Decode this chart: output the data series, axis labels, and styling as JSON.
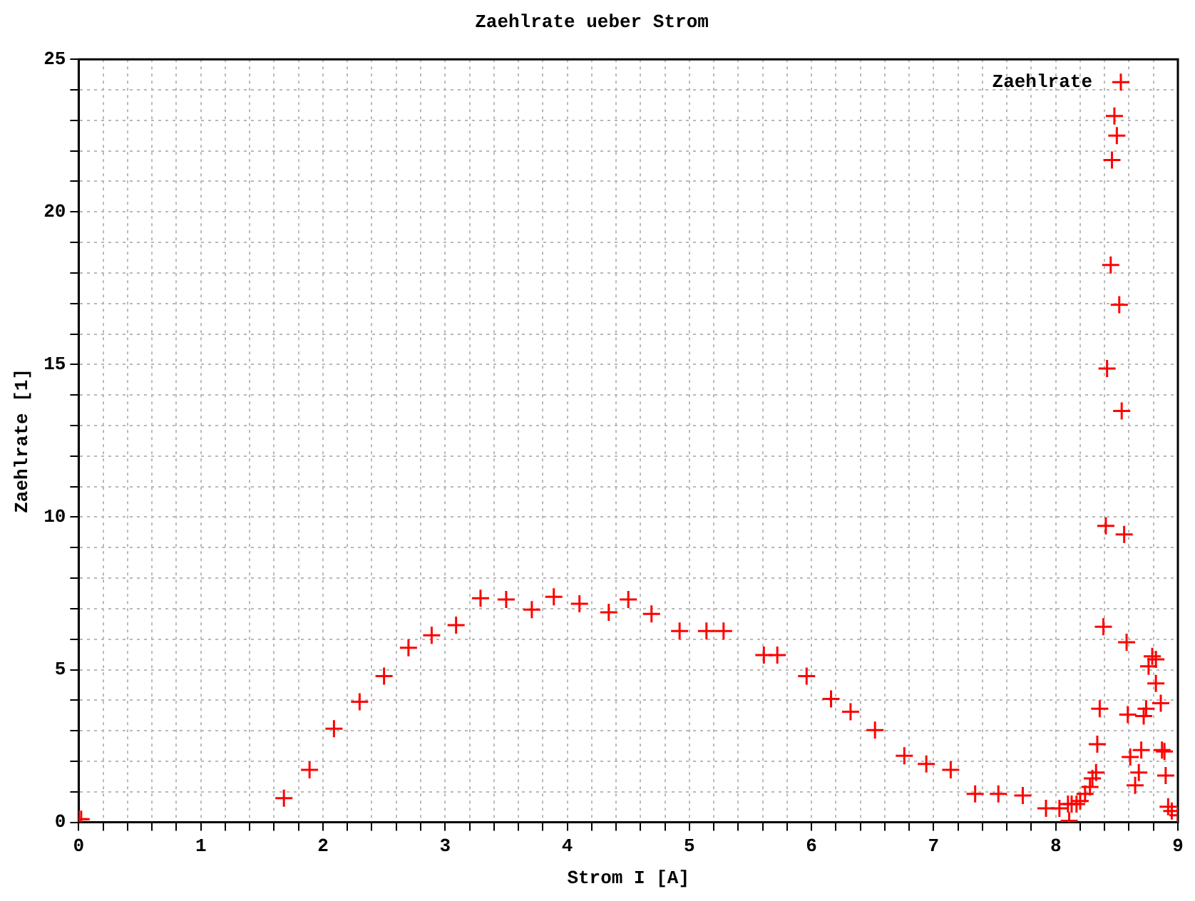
{
  "chart_data": {
    "type": "scatter",
    "title": "Zaehlrate ueber Strom",
    "xlabel": "Strom I [A]",
    "ylabel": "Zaehlrate [1]",
    "xlim": [
      0,
      9
    ],
    "ylim": [
      0,
      25
    ],
    "xticks": [
      0,
      {
        "value": 0.2,
        "label": null
      },
      {
        "value": 0.4,
        "label": null
      },
      {
        "value": 0.6,
        "label": null
      },
      {
        "value": 0.8,
        "label": null
      },
      1,
      {
        "value": 1.2,
        "label": null
      },
      {
        "value": 1.4,
        "label": null
      },
      {
        "value": 1.6,
        "label": null
      },
      {
        "value": 1.8,
        "label": null
      },
      2,
      {
        "value": 2.2,
        "label": null
      },
      {
        "value": 2.4,
        "label": null
      },
      {
        "value": 2.6,
        "label": null
      },
      {
        "value": 2.8,
        "label": null
      },
      3,
      {
        "value": 3.2,
        "label": null
      },
      {
        "value": 3.4,
        "label": null
      },
      {
        "value": 3.6,
        "label": null
      },
      {
        "value": 3.8,
        "label": null
      },
      4,
      {
        "value": 4.2,
        "label": null
      },
      {
        "value": 4.4,
        "label": null
      },
      {
        "value": 4.6,
        "label": null
      },
      {
        "value": 4.8,
        "label": null
      },
      5,
      {
        "value": 5.2,
        "label": null
      },
      {
        "value": 5.4,
        "label": null
      },
      {
        "value": 5.6,
        "label": null
      },
      {
        "value": 5.8,
        "label": null
      },
      6,
      {
        "value": 6.2,
        "label": null
      },
      {
        "value": 6.4,
        "label": null
      },
      {
        "value": 6.6,
        "label": null
      },
      {
        "value": 6.8,
        "label": null
      },
      7,
      {
        "value": 7.2,
        "label": null
      },
      {
        "value": 7.4,
        "label": null
      },
      {
        "value": 7.6,
        "label": null
      },
      {
        "value": 7.8,
        "label": null
      },
      8,
      {
        "value": 8.2,
        "label": null
      },
      {
        "value": 8.4,
        "label": null
      },
      {
        "value": 8.6,
        "label": null
      },
      {
        "value": 8.8,
        "label": null
      },
      9
    ],
    "yticks": [
      0,
      {
        "value": 1,
        "label": null
      },
      {
        "value": 2,
        "label": null
      },
      {
        "value": 3,
        "label": null
      },
      {
        "value": 4,
        "label": null
      },
      5,
      {
        "value": 6,
        "label": null
      },
      {
        "value": 7,
        "label": null
      },
      {
        "value": 8,
        "label": null
      },
      {
        "value": 9,
        "label": null
      },
      10,
      {
        "value": 11,
        "label": null
      },
      {
        "value": 12,
        "label": null
      },
      {
        "value": 13,
        "label": null
      },
      {
        "value": 14,
        "label": null
      },
      15,
      {
        "value": 16,
        "label": null
      },
      {
        "value": 17,
        "label": null
      },
      {
        "value": 18,
        "label": null
      },
      {
        "value": 19,
        "label": null
      },
      20,
      {
        "value": 21,
        "label": null
      },
      {
        "value": 22,
        "label": null
      },
      {
        "value": 23,
        "label": null
      },
      {
        "value": 24,
        "label": null
      },
      25
    ],
    "grid": true,
    "legend": "top right",
    "marker": "cross",
    "series": [
      {
        "name": "Zaehlrate",
        "color": "#ff0000",
        "x": [
          0,
          0.02,
          1.68,
          1.89,
          2.09,
          2.3,
          2.5,
          2.7,
          2.89,
          3.09,
          3.29,
          3.5,
          3.71,
          3.89,
          4.1,
          4.34,
          4.5,
          4.69,
          4.92,
          5.14,
          5.28,
          5.61,
          5.72,
          5.96,
          6.16,
          6.32,
          6.52,
          6.76,
          6.94,
          7.14,
          7.34,
          7.53,
          7.73,
          7.92,
          8.03,
          8.1,
          8.13,
          8.17,
          8.11,
          8.2,
          8.24,
          8.28,
          8.3,
          8.33,
          8.34,
          8.36,
          8.39,
          8.41,
          8.56,
          8.58,
          8.59,
          8.61,
          8.65,
          8.68,
          8.7,
          8.72,
          8.74,
          8.76,
          8.79,
          8.82,
          8.82,
          8.86,
          8.87,
          8.89,
          8.9,
          8.92,
          8.95,
          9,
          8.42,
          8.54,
          8.52,
          8.45,
          8.46,
          8.5,
          8.48
        ],
        "values": [
          0.1,
          0.1,
          0.79,
          1.72,
          3.07,
          3.95,
          4.79,
          5.72,
          6.13,
          6.46,
          7.34,
          7.3,
          6.97,
          7.39,
          7.16,
          6.88,
          7.3,
          6.83,
          6.27,
          6.27,
          6.27,
          5.48,
          5.48,
          4.79,
          4.04,
          3.62,
          3.02,
          2.18,
          1.91,
          1.72,
          0.93,
          0.93,
          0.88,
          0.46,
          0.46,
          0.6,
          0.6,
          0.6,
          0.05,
          0.7,
          0.93,
          1.16,
          1.44,
          1.63,
          2.56,
          3.72,
          6.41,
          9.71,
          9.43,
          5.9,
          3.53,
          2.14,
          1.21,
          1.63,
          2.37,
          3.48,
          3.72,
          5.11,
          5.44,
          5.34,
          4.55,
          3.9,
          2.37,
          2.32,
          1.53,
          0.51,
          0.37,
          0.23,
          14.87,
          13.48,
          16.96,
          18.26,
          21.7,
          22.5,
          23.14
        ]
      }
    ]
  }
}
